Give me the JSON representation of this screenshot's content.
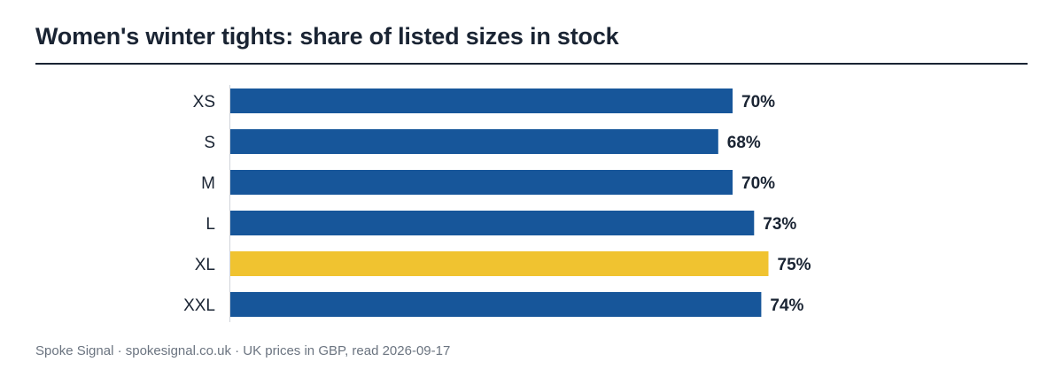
{
  "title": "Women's winter tights: share of listed sizes in stock",
  "footer": "Spoke Signal · spokesignal.co.uk · UK prices in GBP, read 2026-09-17",
  "colors": {
    "default": "#17569a",
    "highlight": "#f0c330",
    "text": "#1a2433"
  },
  "chart_data": {
    "type": "bar",
    "orientation": "horizontal",
    "title": "Women's winter tights: share of listed sizes in stock",
    "xlabel": "",
    "ylabel": "",
    "categories": [
      "XS",
      "S",
      "M",
      "L",
      "XL",
      "XXL"
    ],
    "values": [
      70,
      68,
      70,
      73,
      75,
      74
    ],
    "value_labels": [
      "70%",
      "68%",
      "70%",
      "73%",
      "75%",
      "74%"
    ],
    "highlight": "XL",
    "xlim": [
      0,
      100
    ],
    "grid": false,
    "legend": "none"
  }
}
